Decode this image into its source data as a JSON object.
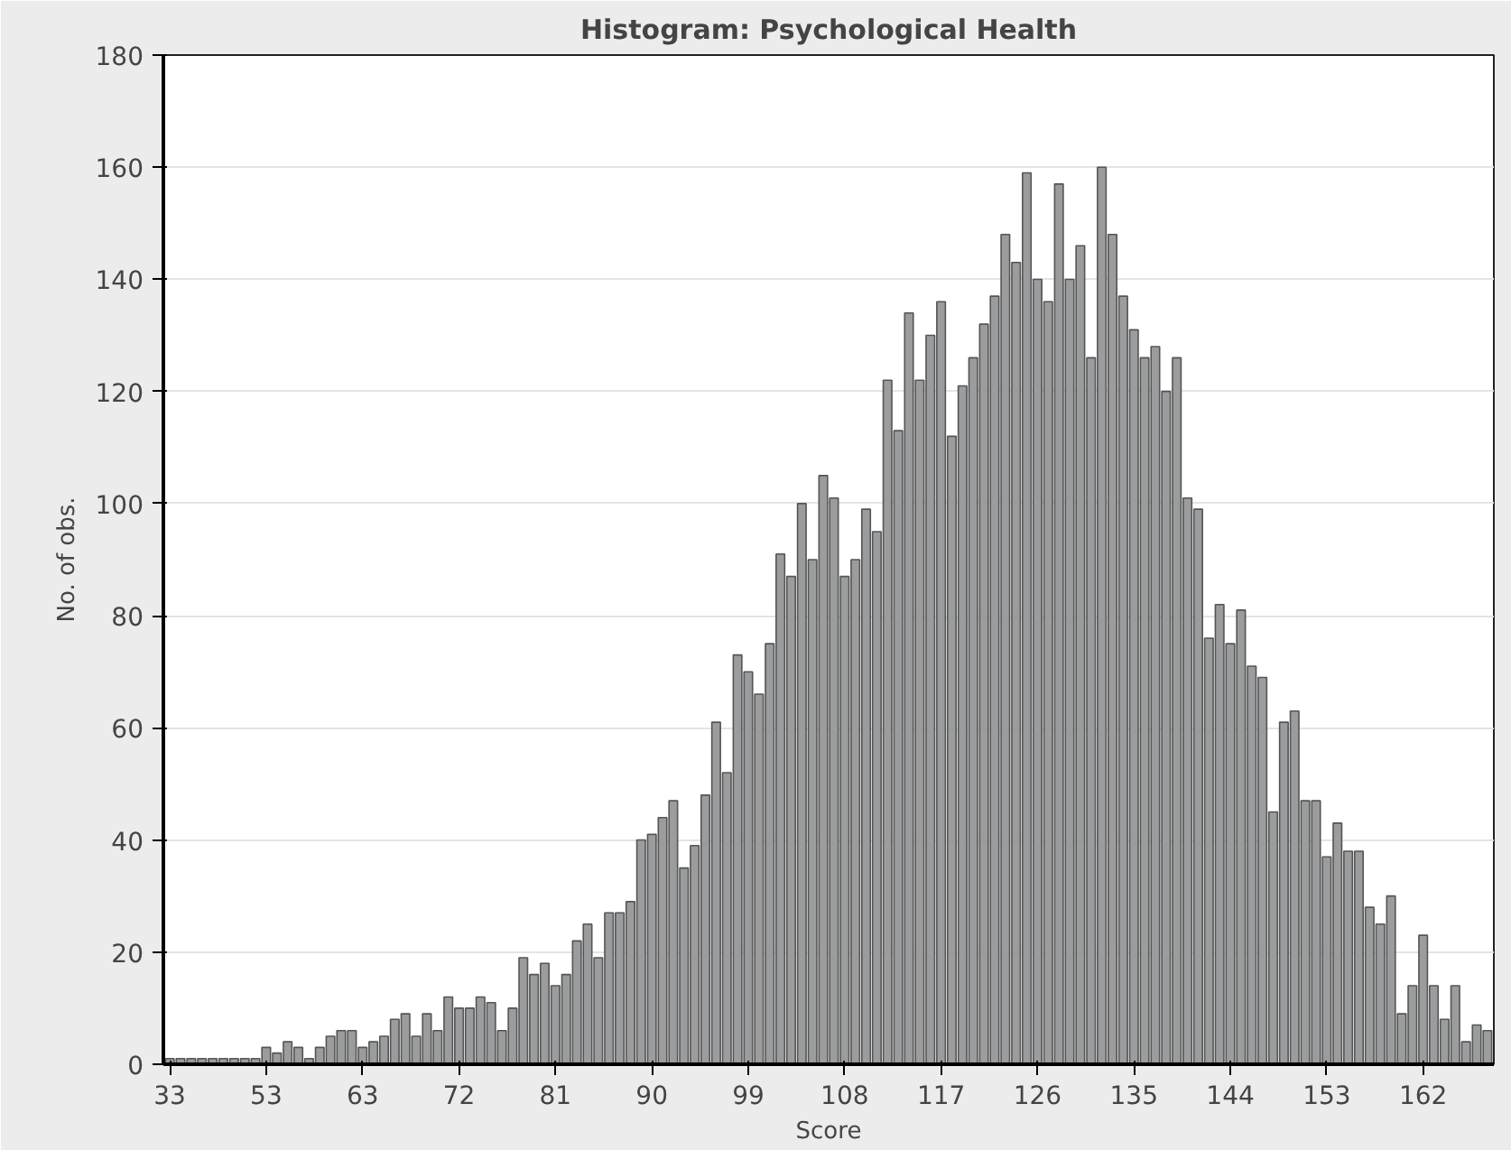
{
  "chart_data": {
    "type": "bar",
    "title": "Histogram: Psychological Health",
    "xlabel": "Score",
    "ylabel": "No. of obs.",
    "categories": [
      "33",
      null,
      null,
      null,
      null,
      null,
      null,
      null,
      null,
      "53",
      null,
      null,
      null,
      null,
      null,
      null,
      null,
      null,
      "63",
      null,
      null,
      null,
      null,
      null,
      null,
      null,
      null,
      "72",
      null,
      null,
      null,
      null,
      null,
      null,
      null,
      null,
      "81",
      null,
      null,
      null,
      null,
      null,
      null,
      null,
      null,
      "90",
      null,
      null,
      null,
      null,
      null,
      null,
      null,
      null,
      "99",
      null,
      null,
      null,
      null,
      null,
      null,
      null,
      null,
      "108",
      null,
      null,
      null,
      null,
      null,
      null,
      null,
      null,
      "117",
      null,
      null,
      null,
      null,
      null,
      null,
      null,
      null,
      "126",
      null,
      null,
      null,
      null,
      null,
      null,
      null,
      null,
      "135",
      null,
      null,
      null,
      null,
      null,
      null,
      null,
      null,
      "144",
      null,
      null,
      null,
      null,
      null,
      null,
      null,
      null,
      "153",
      null,
      null,
      null,
      null,
      null,
      null,
      null,
      null,
      "162",
      null,
      null,
      null,
      null,
      null,
      null
    ],
    "values": [
      1,
      1,
      1,
      1,
      1,
      1,
      1,
      1,
      1,
      3,
      2,
      4,
      3,
      1,
      3,
      5,
      6,
      6,
      3,
      4,
      5,
      8,
      9,
      5,
      9,
      6,
      12,
      10,
      10,
      12,
      11,
      6,
      10,
      19,
      16,
      18,
      14,
      16,
      22,
      25,
      19,
      27,
      27,
      29,
      40,
      41,
      44,
      47,
      35,
      39,
      48,
      61,
      52,
      73,
      70,
      66,
      75,
      91,
      87,
      100,
      90,
      105,
      101,
      87,
      90,
      99,
      95,
      122,
      113,
      134,
      122,
      130,
      136,
      112,
      121,
      126,
      132,
      137,
      148,
      143,
      159,
      140,
      136,
      157,
      140,
      146,
      126,
      160,
      148,
      137,
      131,
      126,
      128,
      120,
      126,
      101,
      99,
      76,
      82,
      75,
      81,
      71,
      69,
      45,
      61,
      63,
      47,
      47,
      37,
      43,
      38,
      38,
      28,
      25,
      30,
      9,
      14,
      23,
      14,
      8,
      14,
      4,
      7,
      6
    ],
    "color": "#9a9c9e",
    "ylim": [
      0,
      180
    ],
    "yticks": [
      0,
      20,
      40,
      60,
      80,
      100,
      120,
      140,
      160,
      180
    ],
    "grid": "y"
  }
}
